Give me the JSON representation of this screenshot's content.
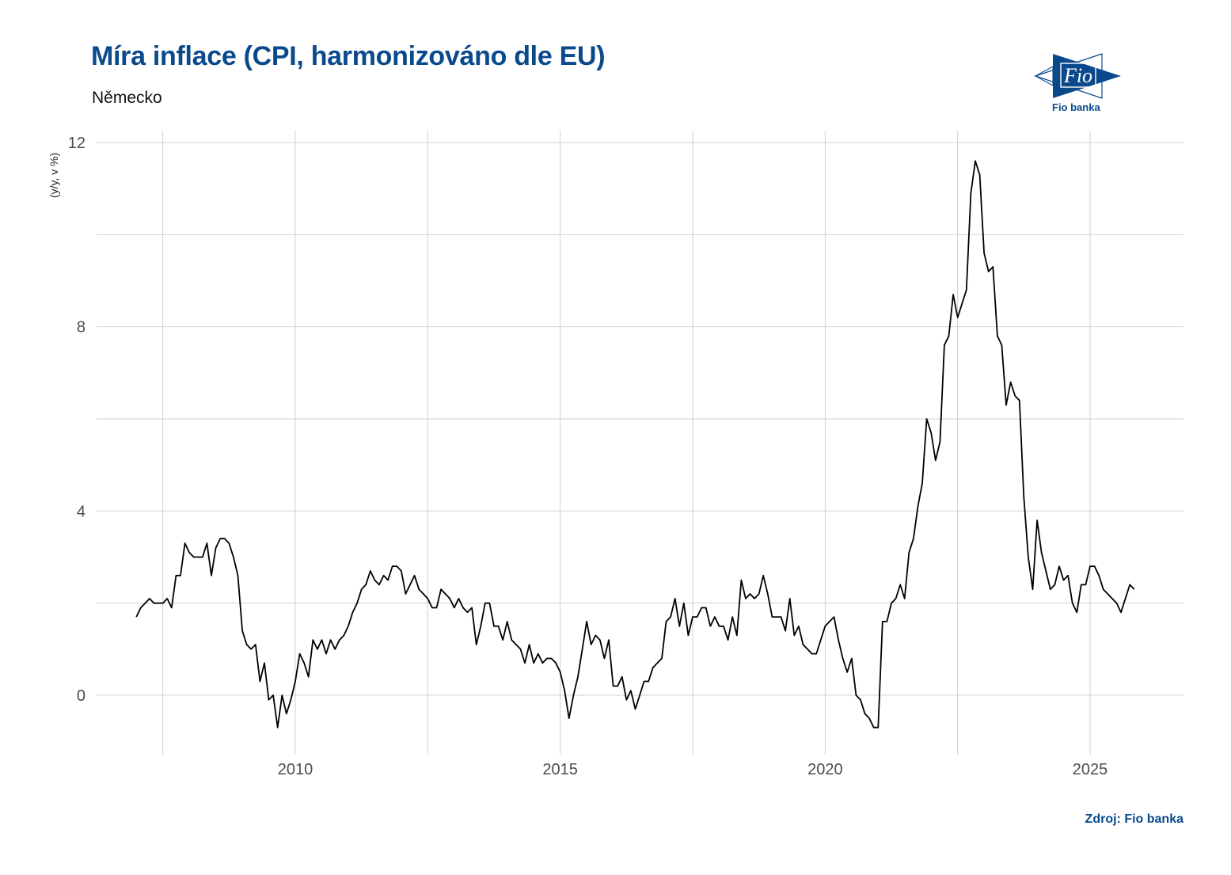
{
  "header": {
    "title": "Míra inflace (CPI, harmonizováno dle EU)",
    "subtitle": "Německo"
  },
  "logo": {
    "text": "Fio banka",
    "mark": "Fio"
  },
  "footer": {
    "source": "Zdroj: Fio banka"
  },
  "colors": {
    "brand": "#0a4a8c",
    "line": "#000000",
    "grid": "#d0d0d0"
  },
  "chart_data": {
    "type": "line",
    "title": "Míra inflace (CPI, harmonizováno dle EU)",
    "subtitle": "Německo",
    "xlabel": "",
    "ylabel": "(y/y, v %)",
    "ylim": [
      -1.3,
      12.2
    ],
    "xlim": [
      2006.5,
      2026.7
    ],
    "yticks": [
      0,
      4,
      8,
      12
    ],
    "xticks": [
      2010,
      2015,
      2020,
      2025
    ],
    "grid": true,
    "legend": "none",
    "start": "2007-01",
    "frequency": "monthly",
    "series": [
      {
        "name": "Německo HICP y/y",
        "values": [
          1.7,
          1.9,
          2.0,
          2.1,
          2.0,
          2.0,
          2.0,
          2.1,
          1.9,
          2.6,
          2.6,
          3.3,
          3.1,
          3.0,
          3.0,
          3.0,
          3.3,
          2.6,
          3.2,
          3.4,
          3.4,
          3.3,
          3.0,
          2.6,
          1.4,
          1.1,
          1.0,
          1.1,
          0.3,
          0.7,
          -0.1,
          0.0,
          -0.7,
          0.0,
          -0.4,
          -0.1,
          0.3,
          0.9,
          0.7,
          0.4,
          1.2,
          1.0,
          1.2,
          0.9,
          1.2,
          1.0,
          1.2,
          1.3,
          1.5,
          1.8,
          2.0,
          2.3,
          2.4,
          2.7,
          2.5,
          2.4,
          2.6,
          2.5,
          2.8,
          2.8,
          2.7,
          2.2,
          2.4,
          2.6,
          2.3,
          2.2,
          2.1,
          1.9,
          1.9,
          2.3,
          2.2,
          2.1,
          1.9,
          2.1,
          1.9,
          1.8,
          1.9,
          1.1,
          1.5,
          2.0,
          2.0,
          1.5,
          1.5,
          1.2,
          1.6,
          1.2,
          1.1,
          1.0,
          0.7,
          1.1,
          0.7,
          0.9,
          0.7,
          0.8,
          0.8,
          0.7,
          0.5,
          0.1,
          -0.5,
          0.0,
          0.4,
          1.0,
          1.6,
          1.1,
          1.3,
          1.2,
          0.8,
          1.2,
          0.2,
          0.2,
          0.4,
          -0.1,
          0.1,
          -0.3,
          0.0,
          0.3,
          0.3,
          0.6,
          0.7,
          0.8,
          1.6,
          1.7,
          2.1,
          1.5,
          2.0,
          1.3,
          1.7,
          1.7,
          1.9,
          1.9,
          1.5,
          1.7,
          1.5,
          1.5,
          1.2,
          1.7,
          1.3,
          2.5,
          2.1,
          2.2,
          2.1,
          2.2,
          2.6,
          2.2,
          1.7,
          1.7,
          1.7,
          1.4,
          2.1,
          1.3,
          1.5,
          1.1,
          1.0,
          0.9,
          0.9,
          1.2,
          1.5,
          1.6,
          1.7,
          1.2,
          0.8,
          0.5,
          0.8,
          0.0,
          -0.1,
          -0.4,
          -0.5,
          -0.7,
          -0.7,
          1.6,
          1.6,
          2.0,
          2.1,
          2.4,
          2.1,
          3.1,
          3.4,
          4.1,
          4.6,
          6.0,
          5.7,
          5.1,
          5.5,
          7.6,
          7.8,
          8.7,
          8.2,
          8.5,
          8.8,
          10.9,
          11.6,
          11.3,
          9.6,
          9.2,
          9.3,
          7.8,
          7.6,
          6.3,
          6.8,
          6.5,
          6.4,
          4.3,
          3.0,
          2.3,
          3.8,
          3.1,
          2.7,
          2.3,
          2.4,
          2.8,
          2.5,
          2.6,
          2.0,
          1.8,
          2.4,
          2.4,
          2.8,
          2.8,
          2.6,
          2.3,
          2.2,
          2.1,
          2.0,
          1.8,
          2.1,
          2.4,
          2.3
        ]
      }
    ]
  }
}
